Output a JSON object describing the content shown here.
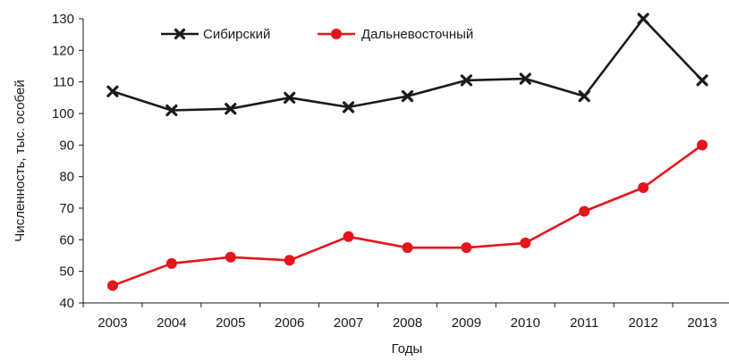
{
  "chart_data": {
    "type": "line",
    "title": "",
    "xlabel": "Годы",
    "ylabel": "Численность, тыс. особей",
    "x": [
      "2003",
      "2004",
      "2005",
      "2006",
      "2007",
      "2008",
      "2009",
      "2010",
      "2011",
      "2012",
      "2013"
    ],
    "ylim": [
      40,
      130
    ],
    "yticks": [
      40,
      50,
      60,
      70,
      80,
      90,
      100,
      110,
      120,
      130
    ],
    "grid": false,
    "legend_position": "top-left",
    "series": [
      {
        "name": "Сибирский",
        "color": "#1a1a1a",
        "marker": "x",
        "values": [
          107,
          101,
          101.5,
          105,
          102,
          105.5,
          110.5,
          111,
          105.5,
          130,
          110.5
        ]
      },
      {
        "name": "Дальневосточный",
        "color": "#e8141c",
        "marker": "circle",
        "values": [
          45.5,
          52.5,
          54.5,
          53.5,
          61,
          57.5,
          57.5,
          59,
          69,
          76.5,
          90
        ]
      }
    ]
  }
}
